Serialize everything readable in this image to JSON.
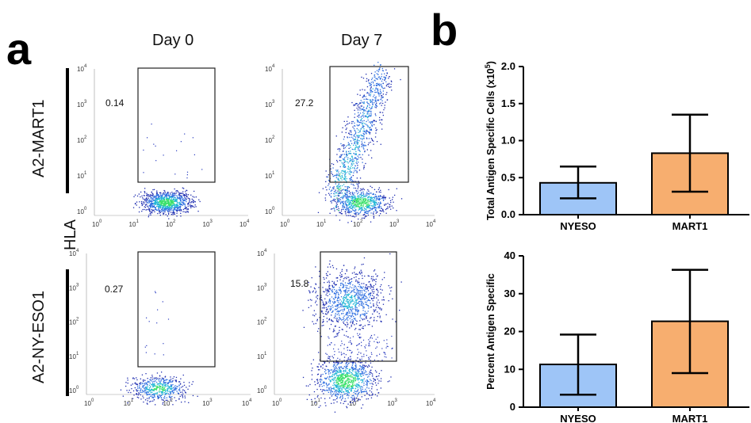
{
  "panel_a": {
    "letter": "a",
    "columns": [
      "Day 0",
      "Day 7"
    ],
    "rows": [
      "A2-MART1",
      "A2-NY-ESO1"
    ],
    "y_axis_label": "HLA",
    "tick_exponents": [
      "0",
      "1",
      "2",
      "3",
      "4"
    ],
    "gate_percentages": {
      "mart1_day0": "0.14",
      "mart1_day7": "27.2",
      "nyeso1_day0": "0.27",
      "nyeso1_day7": "15.8"
    }
  },
  "panel_b": {
    "letter": "b"
  },
  "chart_data": [
    {
      "type": "bar",
      "categories": [
        "NYESO",
        "MART1"
      ],
      "values": [
        0.43,
        0.83
      ],
      "error_low": [
        0.22,
        0.31
      ],
      "error_high": [
        0.65,
        1.35
      ],
      "ylabel": "Total  Antigen Specific Cells (x10^5)",
      "ylabel_main": "Total  Antigen Specific Cells (x10",
      "ylabel_sup": "5",
      "ylabel_end": ")",
      "ylim": [
        0,
        2.0
      ],
      "yticks": [
        "0.0",
        "0.5",
        "1.0",
        "1.5",
        "2.0"
      ],
      "colors": [
        "#9ec5f7",
        "#f7ae6f"
      ]
    },
    {
      "type": "bar",
      "categories": [
        "NYESO",
        "MART1"
      ],
      "values": [
        11.3,
        22.7
      ],
      "error_low": [
        3.3,
        9.0
      ],
      "error_high": [
        19.2,
        36.3
      ],
      "ylabel": "Percent Antigen Specific",
      "ylim": [
        0,
        40
      ],
      "yticks": [
        "0",
        "10",
        "20",
        "30",
        "40"
      ],
      "colors": [
        "#9ec5f7",
        "#f7ae6f"
      ]
    }
  ]
}
